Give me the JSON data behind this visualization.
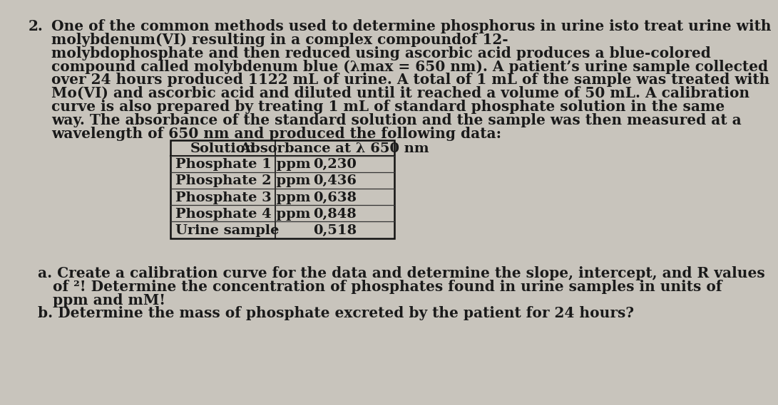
{
  "number": "2.",
  "paragraph_lines": [
    "One of the common methods used to determine phosphorus in urine isto treat urine with",
    "molybdenum(VI) resulting in a complex compoundof 12-",
    "molybdophosphate and then reduced using ascorbic acid produces a blue-colored",
    "compound called molybdenum blue (λmax = 650 nm). A patient’s urine sample collected",
    "over 24 hours produced 1122 mL of urine. A total of 1 mL of the sample was treated with",
    "Mo(VI) and ascorbic acid and diluted until it reached a volume of 50 mL. A calibration",
    "curve is also prepared by treating 1 mL of standard phosphate solution in the same",
    "way. The absorbance of the standard solution and the sample was then measured at a",
    "wavelength of 650 nm and produced the following data:"
  ],
  "table_headers": [
    "Solution",
    "Absorbance at λ 650 nm"
  ],
  "table_rows": [
    [
      "Phosphate 1 ppm",
      "0,230"
    ],
    [
      "Phosphate 2 ppm",
      "0,436"
    ],
    [
      "Phosphate 3 ppm",
      "0,638"
    ],
    [
      "Phosphate 4 ppm",
      "0,848"
    ],
    [
      "Urine sample",
      "0,518"
    ]
  ],
  "part_a_lines": [
    "a. Create a calibration curve for the data and determine the slope, intercept, and R values",
    "   of ²! Determine the concentration of phosphates found in urine samples in units of",
    "   ppm and mM!"
  ],
  "part_b": "b. Determine the mass of phosphate excreted by the patient for 24 hours?",
  "bg_color": "#c8c4bc",
  "text_color": "#1a1a1a",
  "font_size": 14.5,
  "table_font_size": 14.5
}
